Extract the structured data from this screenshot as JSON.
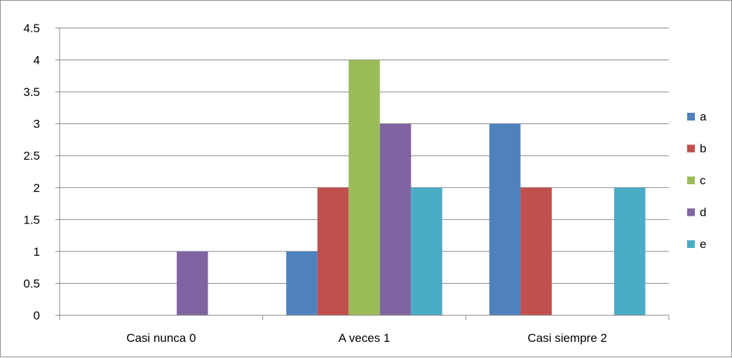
{
  "chart_data": {
    "type": "bar",
    "title": "",
    "xlabel": "",
    "ylabel": "",
    "categories": [
      "Casi nunca 0",
      "A veces 1",
      "Casi siempre 2"
    ],
    "series": [
      {
        "name": "a",
        "color": "#4f81bd",
        "values": [
          0,
          1,
          3
        ]
      },
      {
        "name": "b",
        "color": "#c0504d",
        "values": [
          0,
          2,
          2
        ]
      },
      {
        "name": "c",
        "color": "#9bbb59",
        "values": [
          0,
          4,
          0
        ]
      },
      {
        "name": "d",
        "color": "#8064a2",
        "values": [
          1,
          3,
          0
        ]
      },
      {
        "name": "e",
        "color": "#4bacc6",
        "values": [
          0,
          2,
          2
        ]
      }
    ],
    "ylim": [
      0,
      4.5
    ],
    "yticks": [
      "0",
      "0.5",
      "1",
      "1.5",
      "2",
      "2.5",
      "3",
      "3.5",
      "4",
      "4.5"
    ],
    "grid": true,
    "legend_position": "right",
    "gridline_color": "#868686"
  }
}
